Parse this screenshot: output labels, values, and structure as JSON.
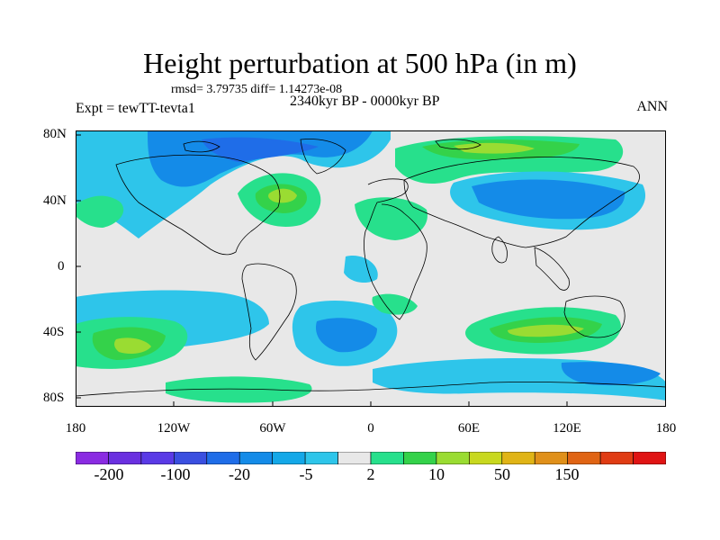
{
  "title": "Height perturbation at 500 hPa (in m)",
  "stats": "rmsd= 3.79735 diff= 1.14273e-08",
  "experiment": "Expt = tewTT-tevta1",
  "period": "2340kyr BP - 0000kyr BP",
  "season": "ANN",
  "lat_labels": [
    "80N",
    "40N",
    "0",
    "40S",
    "80S"
  ],
  "lon_labels": [
    "180",
    "120W",
    "60W",
    "0",
    "60E",
    "120E",
    "180"
  ],
  "colorbar": {
    "labels": [
      "-200",
      "-100",
      "-20",
      "-5",
      "2",
      "10",
      "50",
      "150"
    ],
    "colors": [
      "#8a2be2",
      "#6a30e0",
      "#5a3ae6",
      "#3a4fe0",
      "#1f6de8",
      "#148be8",
      "#14a8e8",
      "#2ec5ea",
      "#e8e8e8",
      "#27e08c",
      "#34d24a",
      "#9adc32",
      "#c8d81f",
      "#e0b416",
      "#e0901a",
      "#e06414",
      "#e03c14",
      "#e01414"
    ]
  },
  "colors": {
    "background": "#e8e8e8",
    "strong_negative": "#1f6de8",
    "negative": "#148be8",
    "weak_negative": "#2ec5ea",
    "weak_positive": "#27e08c",
    "positive": "#34d24a",
    "strong_positive": "#9adc32"
  }
}
